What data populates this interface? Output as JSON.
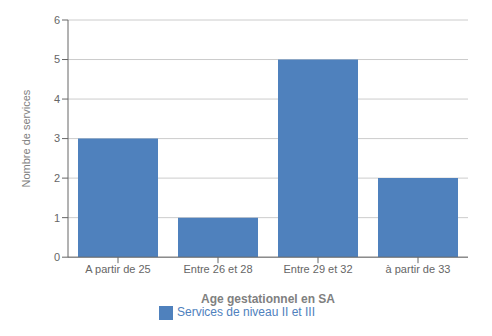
{
  "chart_data": {
    "type": "bar",
    "categories": [
      "A partir de 25",
      "Entre 26 et 28",
      "Entre 29 et 32",
      "à partir de 33"
    ],
    "series": [
      {
        "name": "Services de niveau II et III",
        "color": "#4F81BD",
        "values": [
          3,
          1,
          5,
          2
        ]
      }
    ],
    "xlabel": "Age gestationnel en SA",
    "ylabel": "Nombre de services",
    "ylim": [
      0,
      6
    ],
    "yticks": [
      0,
      1,
      2,
      3,
      4,
      5,
      6
    ],
    "grid": true,
    "legend": "bottom"
  }
}
